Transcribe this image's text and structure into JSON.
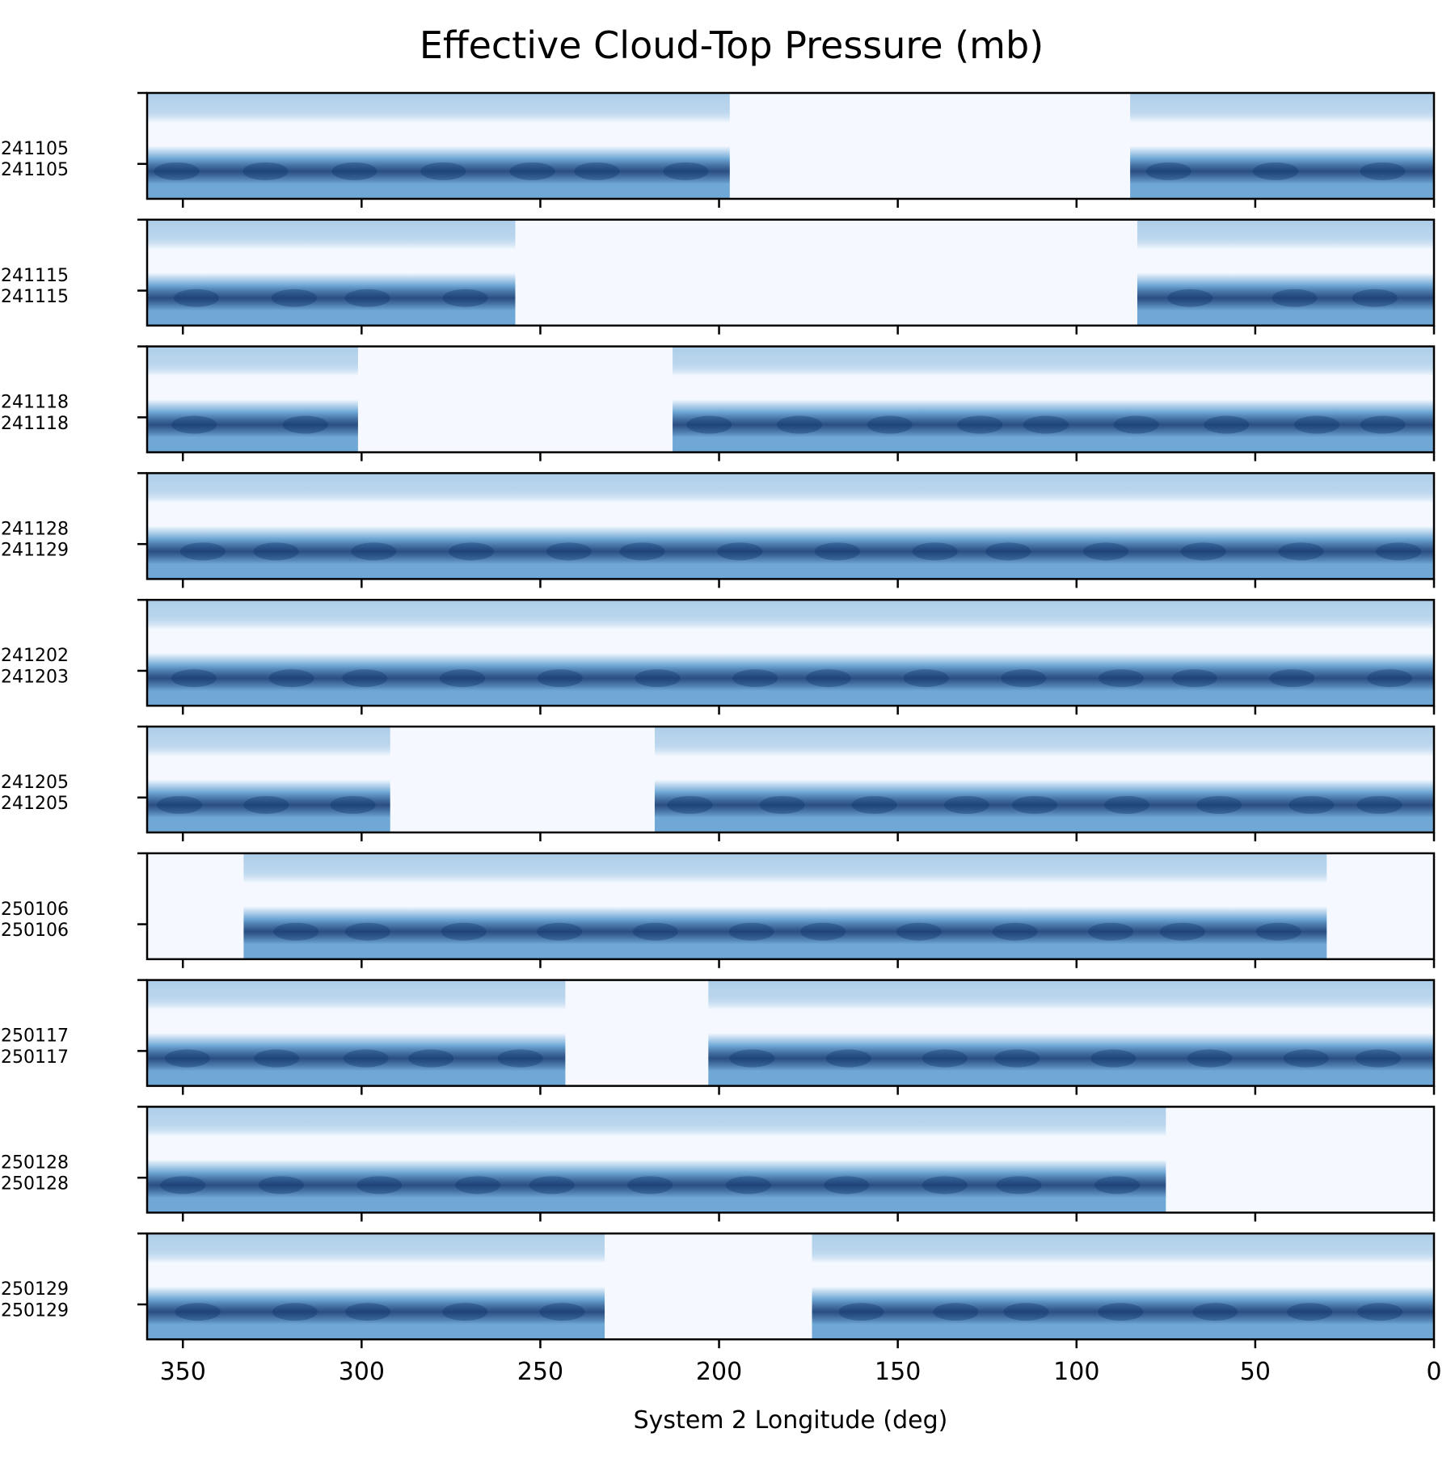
{
  "chart_data": {
    "type": "heatmap",
    "title": "Effective Cloud-Top Pressure (mb)",
    "xlabel": "System 2 Longitude (deg)",
    "ylabel": "",
    "xlim": [
      360,
      0
    ],
    "x_ticks": [
      "350",
      "300",
      "250",
      "200",
      "150",
      "100",
      "50",
      "0"
    ],
    "x_tick_values": [
      350,
      300,
      250,
      200,
      150,
      100,
      50,
      0
    ],
    "colormap": "Blues",
    "colors": {
      "light": "#f5f9ff",
      "mid": "#6fa8d6",
      "dark": "#08306b",
      "axis": "#000000"
    },
    "grid": false,
    "panels": [
      {
        "label_start": "241105",
        "label_end": "241105",
        "coverage_lon": [
          [
            360,
            197
          ],
          [
            85,
            0
          ]
        ]
      },
      {
        "label_start": "241115",
        "label_end": "241115",
        "coverage_lon": [
          [
            360,
            257
          ],
          [
            83,
            0
          ]
        ]
      },
      {
        "label_start": "241118",
        "label_end": "241118",
        "coverage_lon": [
          [
            360,
            301
          ],
          [
            213,
            0
          ]
        ]
      },
      {
        "label_start": "241128",
        "label_end": "241129",
        "coverage_lon": [
          [
            360,
            0
          ]
        ]
      },
      {
        "label_start": "241202",
        "label_end": "241203",
        "coverage_lon": [
          [
            360,
            0
          ]
        ]
      },
      {
        "label_start": "241205",
        "label_end": "241205",
        "coverage_lon": [
          [
            360,
            292
          ],
          [
            218,
            0
          ]
        ]
      },
      {
        "label_start": "250106",
        "label_end": "250106",
        "coverage_lon": [
          [
            333,
            30
          ]
        ]
      },
      {
        "label_start": "250117",
        "label_end": "250117",
        "coverage_lon": [
          [
            360,
            243
          ],
          [
            203,
            0
          ]
        ]
      },
      {
        "label_start": "250128",
        "label_end": "250128",
        "coverage_lon": [
          [
            360,
            75
          ]
        ]
      },
      {
        "label_start": "250129",
        "label_end": "250129",
        "coverage_lon": [
          [
            360,
            232
          ],
          [
            174,
            0
          ]
        ]
      }
    ]
  }
}
